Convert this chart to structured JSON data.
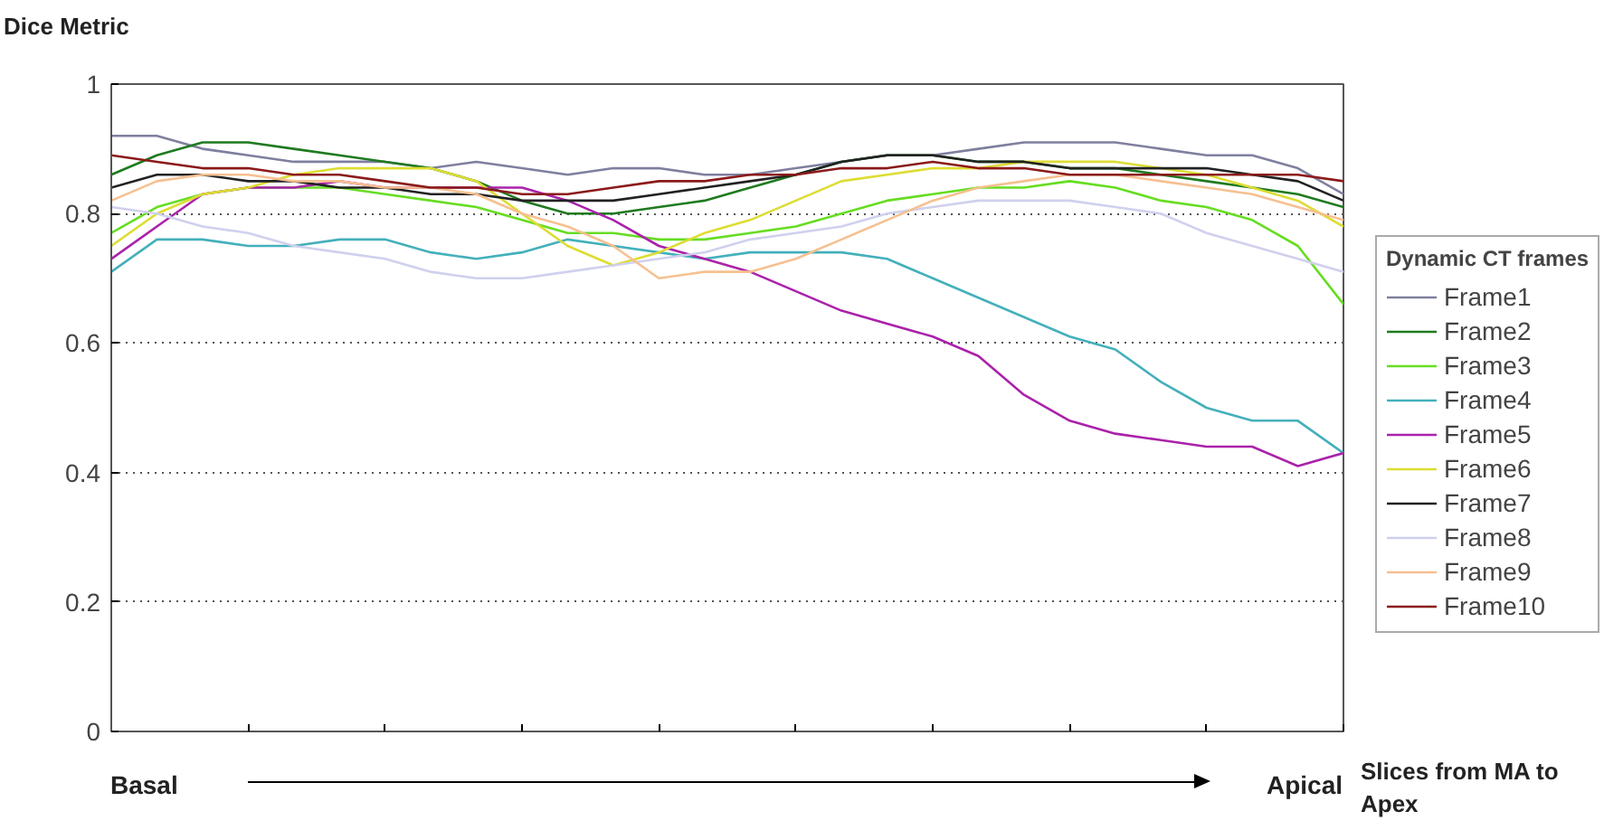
{
  "chart_data": {
    "type": "line",
    "ylabel": "Dice Metric",
    "legend_title": "Dynamic CT frames",
    "annotations": [
      "Basal",
      "Apical",
      "Slices from MA to Apex"
    ],
    "categories": [
      null,
      null,
      null,
      null,
      null,
      null,
      null,
      null,
      null,
      null,
      null,
      null,
      null,
      null,
      null,
      null,
      null,
      null,
      null,
      null,
      null,
      null,
      null,
      null,
      null,
      null,
      null,
      null
    ],
    "ylim": [
      0,
      1
    ],
    "yticks": [
      0,
      0.2,
      0.4,
      0.6,
      0.8,
      1
    ],
    "grid": "y",
    "legend": "right",
    "tick_labels": "y",
    "line_style": "solid",
    "marker": "none",
    "series": [
      {
        "name": "Frame1",
        "color": "#7f7f9f",
        "values": [
          0.92,
          0.92,
          0.9,
          0.89,
          0.88,
          0.88,
          0.88,
          0.87,
          0.88,
          0.87,
          0.86,
          0.87,
          0.87,
          0.86,
          0.86,
          0.87,
          0.88,
          0.89,
          0.89,
          0.9,
          0.91,
          0.91,
          0.91,
          0.9,
          0.89,
          0.89,
          0.87,
          0.83
        ]
      },
      {
        "name": "Frame2",
        "color": "#1f7a1f",
        "values": [
          0.86,
          0.89,
          0.91,
          0.91,
          0.9,
          0.89,
          0.88,
          0.87,
          0.85,
          0.82,
          0.8,
          0.8,
          0.81,
          0.82,
          0.84,
          0.86,
          0.88,
          0.89,
          0.89,
          0.88,
          0.88,
          0.87,
          0.87,
          0.86,
          0.85,
          0.84,
          0.83,
          0.81
        ]
      },
      {
        "name": "Frame3",
        "color": "#66dd22",
        "values": [
          0.77,
          0.81,
          0.83,
          0.84,
          0.84,
          0.84,
          0.83,
          0.82,
          0.81,
          0.79,
          0.77,
          0.77,
          0.76,
          0.76,
          0.77,
          0.78,
          0.8,
          0.82,
          0.83,
          0.84,
          0.84,
          0.85,
          0.84,
          0.82,
          0.81,
          0.79,
          0.75,
          0.66
        ]
      },
      {
        "name": "Frame4",
        "color": "#44b0bb",
        "values": [
          0.71,
          0.76,
          0.76,
          0.75,
          0.75,
          0.76,
          0.76,
          0.74,
          0.73,
          0.74,
          0.76,
          0.75,
          0.74,
          0.73,
          0.74,
          0.74,
          0.74,
          0.73,
          0.7,
          0.67,
          0.64,
          0.61,
          0.59,
          0.54,
          0.5,
          0.48,
          0.48,
          0.43
        ]
      },
      {
        "name": "Frame5",
        "color": "#aa22aa",
        "values": [
          0.73,
          0.78,
          0.83,
          0.84,
          0.84,
          0.85,
          0.84,
          0.84,
          0.84,
          0.84,
          0.82,
          0.79,
          0.75,
          0.73,
          0.71,
          0.68,
          0.65,
          0.63,
          0.61,
          0.58,
          0.52,
          0.48,
          0.46,
          0.45,
          0.44,
          0.44,
          0.41,
          0.43
        ]
      },
      {
        "name": "Frame6",
        "color": "#dddd33",
        "values": [
          0.75,
          0.8,
          0.83,
          0.84,
          0.86,
          0.87,
          0.87,
          0.87,
          0.85,
          0.8,
          0.75,
          0.72,
          0.74,
          0.77,
          0.79,
          0.82,
          0.85,
          0.86,
          0.87,
          0.87,
          0.88,
          0.88,
          0.88,
          0.87,
          0.86,
          0.84,
          0.82,
          0.78
        ]
      },
      {
        "name": "Frame7",
        "color": "#222222",
        "values": [
          0.84,
          0.86,
          0.86,
          0.85,
          0.85,
          0.84,
          0.84,
          0.83,
          0.83,
          0.82,
          0.82,
          0.82,
          0.83,
          0.84,
          0.85,
          0.86,
          0.88,
          0.89,
          0.89,
          0.88,
          0.88,
          0.87,
          0.87,
          0.87,
          0.87,
          0.86,
          0.85,
          0.82
        ]
      },
      {
        "name": "Frame8",
        "color": "#d0d0ee",
        "values": [
          0.81,
          0.8,
          0.78,
          0.77,
          0.75,
          0.74,
          0.73,
          0.71,
          0.7,
          0.7,
          0.71,
          0.72,
          0.73,
          0.74,
          0.76,
          0.77,
          0.78,
          0.8,
          0.81,
          0.82,
          0.82,
          0.82,
          0.81,
          0.8,
          0.77,
          0.75,
          0.73,
          0.71
        ]
      },
      {
        "name": "Frame9",
        "color": "#f6c090",
        "values": [
          0.82,
          0.85,
          0.86,
          0.86,
          0.85,
          0.85,
          0.84,
          0.84,
          0.83,
          0.8,
          0.78,
          0.75,
          0.7,
          0.71,
          0.71,
          0.73,
          0.76,
          0.79,
          0.82,
          0.84,
          0.85,
          0.86,
          0.86,
          0.85,
          0.84,
          0.83,
          0.81,
          0.79
        ]
      },
      {
        "name": "Frame10",
        "color": "#8b1a1a",
        "values": [
          0.89,
          0.88,
          0.87,
          0.87,
          0.86,
          0.86,
          0.85,
          0.84,
          0.84,
          0.83,
          0.83,
          0.84,
          0.85,
          0.85,
          0.86,
          0.86,
          0.87,
          0.87,
          0.88,
          0.87,
          0.87,
          0.86,
          0.86,
          0.86,
          0.86,
          0.86,
          0.86,
          0.85
        ]
      }
    ]
  }
}
